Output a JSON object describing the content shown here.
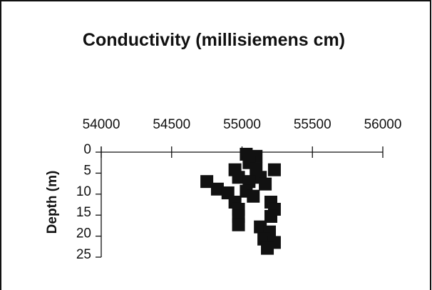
{
  "chart_data": {
    "type": "scatter",
    "title": "Conductivity (millisiemens cm)",
    "y_label": "Depth (m)",
    "x": [
      55030,
      55100,
      55050,
      55100,
      54950,
      55230,
      54975,
      55130,
      55050,
      55165,
      54750,
      54825,
      54900,
      55030,
      55080,
      54950,
      55205,
      54975,
      55230,
      54975,
      55205,
      54975,
      55130,
      55195,
      55155,
      55230,
      55180
    ],
    "values": [
      0.5,
      1,
      2.5,
      4,
      4.2,
      4.2,
      6,
      6,
      7,
      7.6,
      7,
      8.8,
      9.7,
      9.3,
      10.5,
      11.9,
      11.9,
      13.6,
      13.6,
      15.3,
      15.3,
      17.3,
      17.8,
      19,
      20.7,
      21.5,
      22.9
    ],
    "color": "#111111",
    "marker": "square",
    "xlim": [
      54000,
      56000
    ],
    "xticks": [
      54000,
      54500,
      55000,
      55500,
      56000
    ],
    "ylim": [
      0,
      25
    ],
    "yticks": [
      0,
      5,
      10,
      15,
      20,
      25
    ],
    "y_inverted": true,
    "x_axis_position": "top"
  }
}
